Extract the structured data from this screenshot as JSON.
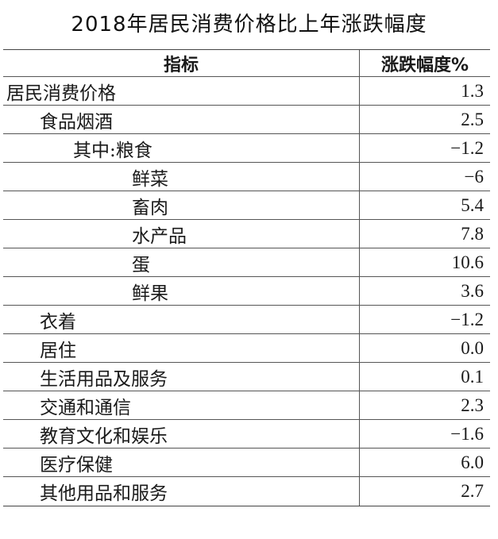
{
  "title": "2018年居民消费价格比上年涨跌幅度",
  "table": {
    "header": {
      "name": "指标",
      "value": "涨跌幅度%"
    },
    "rows": [
      {
        "name": "居民消费价格",
        "value": "1.3"
      },
      {
        "name": "食品烟酒",
        "value": "2.5"
      },
      {
        "name": "其中:粮食",
        "value": "−1.2"
      },
      {
        "name": "鲜菜",
        "value": "−6"
      },
      {
        "name": "畜肉",
        "value": "5.4"
      },
      {
        "name": "水产品",
        "value": "7.8"
      },
      {
        "name": "蛋",
        "value": "10.6"
      },
      {
        "name": "鲜果",
        "value": "3.6"
      },
      {
        "name": "衣着",
        "value": "−1.2"
      },
      {
        "name": "居住",
        "value": "0.0"
      },
      {
        "name": "生活用品及服务",
        "value": "0.1"
      },
      {
        "name": "交通和通信",
        "value": "2.3"
      },
      {
        "name": "教育文化和娱乐",
        "value": "−1.6"
      },
      {
        "name": "医疗保健",
        "value": "6.0"
      },
      {
        "name": "其他用品和服务",
        "value": "2.7"
      }
    ]
  }
}
